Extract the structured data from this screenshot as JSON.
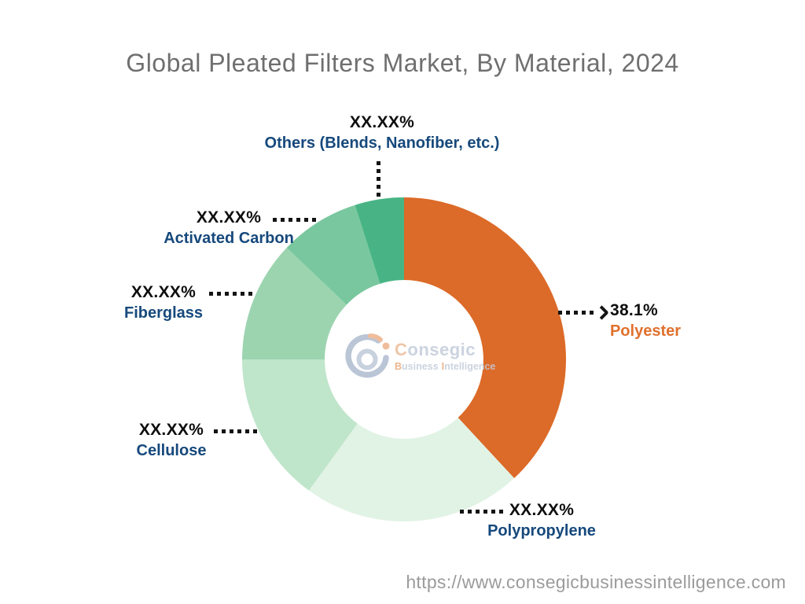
{
  "title": "Global Pleated Filters Market, By Material, 2024",
  "footer": {
    "url": "https://www.consegicbusinessintelligence.com"
  },
  "logo": {
    "name": "Consegic",
    "tagline_1": "Business",
    "tagline_2": "Intelligence"
  },
  "colors": {
    "title_text": "#6F6F6F",
    "value_text": "#0E0E0E",
    "label_text": "#16497C",
    "polyester_label": "#E0702D",
    "leader": "#141414",
    "url_text": "#9B9B9B"
  },
  "chart_data": {
    "type": "pie",
    "subtype": "donut",
    "title": "Global Pleated Filters Market, By Material, 2024",
    "start_angle_deg": 0,
    "direction": "clockwise",
    "inner_radius_ratio": 0.49,
    "legend_position": "none",
    "segments": [
      {
        "name": "Polyester",
        "display_value": "38.1%",
        "share_pct_est": 38.1,
        "color": "#DC6A28"
      },
      {
        "name": "Polypropylene",
        "display_value": "XX.XX%",
        "share_pct_est": 21.9,
        "color": "#E1F3E5"
      },
      {
        "name": "Cellulose",
        "display_value": "XX.XX%",
        "share_pct_est": 15.0,
        "color": "#BFE5CA"
      },
      {
        "name": "Fiberglass",
        "display_value": "XX.XX%",
        "share_pct_est": 12.1,
        "color": "#9CD4B0"
      },
      {
        "name": "Activated Carbon",
        "display_value": "XX.XX%",
        "share_pct_est": 8.0,
        "color": "#79C79E"
      },
      {
        "name": "Others (Blends, Nanofiber, etc.)",
        "display_value": "XX.XX%",
        "share_pct_est": 4.9,
        "color": "#48B485"
      }
    ]
  }
}
